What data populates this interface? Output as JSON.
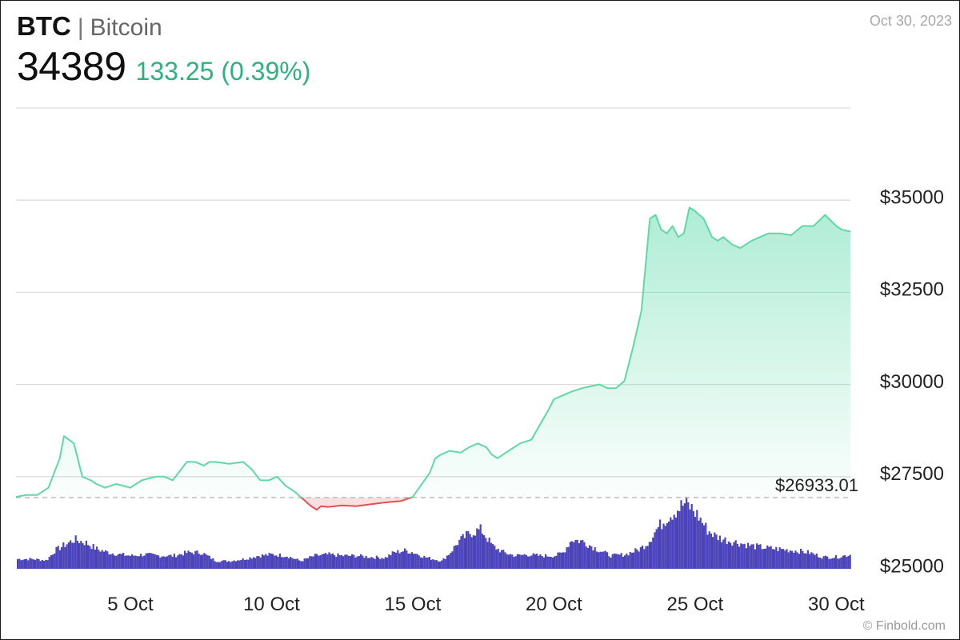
{
  "header": {
    "ticker": "BTC",
    "separator": "|",
    "name": "Bitcoin",
    "price": "34389",
    "change": "133.25 (0.39%)",
    "date": "Oct 30, 2023"
  },
  "footer": {
    "credit": "© Finbold.com"
  },
  "colors": {
    "up": "#2bb37b",
    "up_line": "#5fd9a4",
    "down_line": "#e05252",
    "volume": "#4b43b9",
    "grid": "#dddddd",
    "reference_line": "#bdbdbd"
  },
  "chart_data": {
    "type": "area",
    "y_axis": {
      "ticks": [
        25000,
        27500,
        30000,
        32500,
        35000
      ],
      "tick_labels": [
        "$25000",
        "$27500",
        "$30000",
        "$32500",
        "$35000"
      ],
      "range": [
        25000,
        37500
      ],
      "position": "right"
    },
    "x_axis": {
      "ticks": [
        "5 Oct",
        "10 Oct",
        "15 Oct",
        "20 Oct",
        "25 Oct",
        "30 Oct"
      ],
      "tick_days": [
        5,
        10,
        15,
        20,
        25,
        30
      ],
      "range_days": [
        0.95,
        30.5
      ]
    },
    "grid": true,
    "reference_line": {
      "value": 26933.01,
      "label": "$26933.01"
    },
    "price_series": {
      "x_days": [
        0.95,
        1.3,
        1.7,
        2.1,
        2.5,
        2.65,
        3.0,
        3.3,
        3.6,
        3.8,
        4.1,
        4.5,
        5.0,
        5.4,
        5.9,
        6.2,
        6.5,
        6.7,
        7.0,
        7.3,
        7.6,
        7.8,
        8.0,
        8.5,
        9.0,
        9.3,
        9.6,
        9.9,
        10.2,
        10.5,
        10.8,
        11.1,
        11.4,
        11.6,
        11.75,
        12.0,
        12.5,
        13.0,
        13.5,
        14.0,
        14.3,
        14.6,
        15.0,
        15.6,
        15.8,
        16.0,
        16.3,
        16.7,
        17.0,
        17.3,
        17.6,
        17.8,
        18.0,
        18.4,
        18.8,
        19.2,
        19.5,
        19.8,
        20.0,
        20.3,
        20.6,
        21.0,
        21.3,
        21.6,
        21.9,
        22.2,
        22.5,
        22.8,
        23.1,
        23.4,
        23.6,
        23.8,
        24.0,
        24.2,
        24.4,
        24.6,
        24.8,
        25.0,
        25.3,
        25.6,
        25.8,
        26.0,
        26.3,
        26.6,
        27.0,
        27.3,
        27.6,
        28.0,
        28.4,
        28.8,
        29.2,
        29.6,
        30.0,
        30.2,
        30.5
      ],
      "y_values": [
        26950,
        27000,
        27000,
        27200,
        28000,
        28600,
        28400,
        27500,
        27400,
        27300,
        27200,
        27300,
        27200,
        27400,
        27500,
        27500,
        27400,
        27600,
        27900,
        27900,
        27800,
        27900,
        27900,
        27850,
        27900,
        27700,
        27400,
        27400,
        27500,
        27250,
        27100,
        26900,
        26700,
        26600,
        26700,
        26680,
        26720,
        26700,
        26750,
        26800,
        26820,
        26840,
        26950,
        27600,
        28000,
        28100,
        28200,
        28150,
        28300,
        28400,
        28300,
        28100,
        28000,
        28200,
        28400,
        28500,
        28900,
        29300,
        29600,
        29700,
        29800,
        29900,
        29950,
        30000,
        29900,
        29900,
        30100,
        31000,
        32000,
        34500,
        34600,
        34200,
        34100,
        34300,
        34000,
        34100,
        34800,
        34700,
        34500,
        34000,
        33900,
        34000,
        33800,
        33700,
        33900,
        34000,
        34100,
        34100,
        34050,
        34300,
        34300,
        34600,
        34300,
        34200,
        34150
      ]
    },
    "volume_series": {
      "x_days": [
        0.95,
        1.5,
        2.0,
        2.3,
        2.7,
        3.0,
        3.4,
        3.8,
        4.2,
        4.6,
        5.0,
        5.5,
        6.0,
        6.5,
        7.0,
        7.5,
        8.0,
        8.5,
        9.0,
        9.5,
        10.0,
        10.5,
        11.0,
        11.5,
        12.0,
        12.5,
        13.0,
        13.5,
        14.0,
        14.3,
        14.7,
        15.0,
        15.4,
        15.7,
        16.0,
        16.3,
        16.6,
        17.0,
        17.4,
        17.8,
        18.2,
        18.6,
        19.0,
        19.5,
        20.0,
        20.3,
        20.6,
        21.0,
        21.5,
        22.0,
        22.5,
        23.0,
        23.3,
        23.6,
        24.0,
        24.3,
        24.6,
        24.8,
        25.1,
        25.4,
        25.7,
        26.0,
        26.5,
        27.0,
        27.5,
        28.0,
        28.5,
        29.0,
        29.5,
        30.0,
        30.5
      ],
      "heights_relative": [
        0.15,
        0.15,
        0.13,
        0.28,
        0.38,
        0.45,
        0.4,
        0.3,
        0.25,
        0.22,
        0.2,
        0.22,
        0.2,
        0.2,
        0.25,
        0.25,
        0.12,
        0.12,
        0.15,
        0.2,
        0.22,
        0.2,
        0.12,
        0.2,
        0.22,
        0.2,
        0.2,
        0.18,
        0.17,
        0.25,
        0.28,
        0.25,
        0.18,
        0.15,
        0.12,
        0.25,
        0.42,
        0.55,
        0.6,
        0.35,
        0.25,
        0.2,
        0.22,
        0.2,
        0.2,
        0.25,
        0.45,
        0.42,
        0.3,
        0.2,
        0.22,
        0.3,
        0.4,
        0.6,
        0.8,
        0.9,
        1.0,
        0.95,
        0.8,
        0.6,
        0.5,
        0.45,
        0.4,
        0.35,
        0.32,
        0.3,
        0.28,
        0.25,
        0.18,
        0.18,
        0.22
      ]
    }
  }
}
